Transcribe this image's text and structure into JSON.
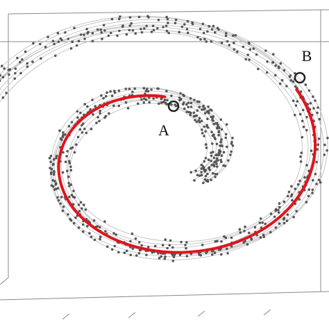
{
  "points": {
    "a": "A",
    "b": "B"
  }
}
